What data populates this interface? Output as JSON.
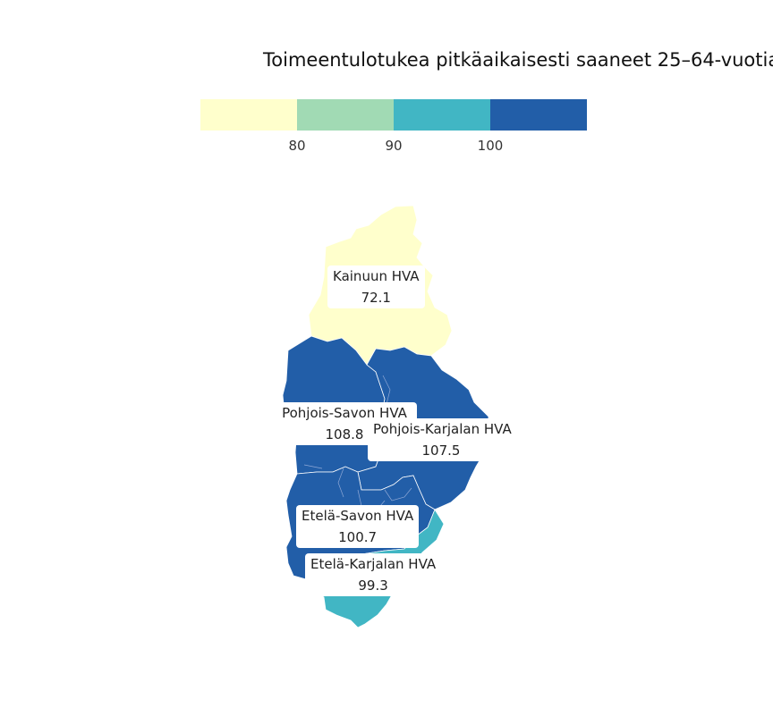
{
  "title": "Toimeentulotukea pitkäaikaisesti saaneet 25–64-vuotia",
  "legend": {
    "colors": [
      "#ffffcc",
      "#a1dab4",
      "#41b6c4",
      "#225ea8"
    ],
    "ticks": [
      "80",
      "90",
      "100"
    ]
  },
  "regions": {
    "kainuu": {
      "name": "Kainuun HVA",
      "value": "72.1",
      "color": "#ffffcc"
    },
    "pohjois_savo": {
      "name": "Pohjois-Savon HVA",
      "value": "108.8",
      "color": "#225ea8"
    },
    "pohjois_karjala": {
      "name": "Pohjois-Karjalan HVA",
      "value": "107.5",
      "color": "#225ea8"
    },
    "etela_savo": {
      "name": "Etelä-Savon HVA",
      "value": "100.7",
      "color": "#225ea8"
    },
    "etela_karjala": {
      "name": "Etelä-Karjalan HVA",
      "value": "99.3",
      "color": "#41b6c4"
    }
  }
}
